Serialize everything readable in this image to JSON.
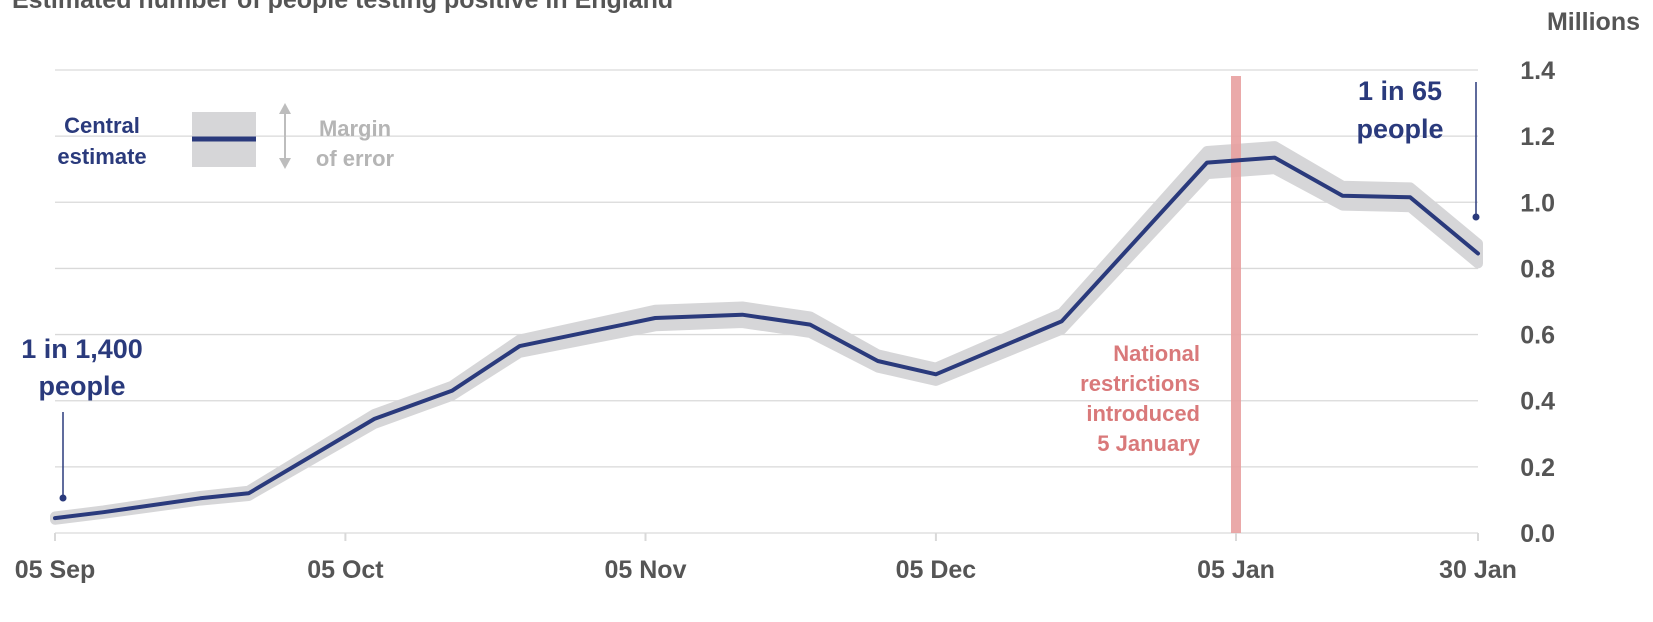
{
  "chart_data": {
    "type": "line",
    "title": "Estimated number of people testing positive in England",
    "units_label": "Millions",
    "ylim": [
      0,
      1.4
    ],
    "y_ticks": [
      "0.0",
      "0.2",
      "0.4",
      "0.6",
      "0.8",
      "1.0",
      "1.2",
      "1.4"
    ],
    "y_tick_values": [
      0,
      0.2,
      0.4,
      0.6,
      0.8,
      1.0,
      1.2,
      1.4
    ],
    "x_range": [
      "2020-09-05",
      "2021-01-30"
    ],
    "x_ticks": [
      {
        "date": "2020-09-05",
        "label": "05 Sep"
      },
      {
        "date": "2020-10-05",
        "label": "05 Oct"
      },
      {
        "date": "2020-11-05",
        "label": "05 Nov"
      },
      {
        "date": "2020-12-05",
        "label": "05 Dec"
      },
      {
        "date": "2021-01-05",
        "label": "05 Jan"
      },
      {
        "date": "2021-01-30",
        "label": "30 Jan"
      }
    ],
    "grid": true,
    "series": [
      {
        "name": "Central estimate",
        "color": "#2a3a7c",
        "band_color": "#d6d6d8",
        "band_label": "Margin of error",
        "points": [
          {
            "x": "2020-09-05",
            "y": 0.045,
            "lo": 0.04,
            "hi": 0.05
          },
          {
            "x": "2020-09-10",
            "y": 0.063,
            "lo": 0.058,
            "hi": 0.068
          },
          {
            "x": "2020-09-20",
            "y": 0.105,
            "lo": 0.098,
            "hi": 0.112
          },
          {
            "x": "2020-09-25",
            "y": 0.12,
            "lo": 0.112,
            "hi": 0.128
          },
          {
            "x": "2020-10-08",
            "y": 0.345,
            "lo": 0.33,
            "hi": 0.36
          },
          {
            "x": "2020-10-16",
            "y": 0.43,
            "lo": 0.415,
            "hi": 0.445
          },
          {
            "x": "2020-10-23",
            "y": 0.565,
            "lo": 0.545,
            "hi": 0.585
          },
          {
            "x": "2020-11-06",
            "y": 0.65,
            "lo": 0.625,
            "hi": 0.675
          },
          {
            "x": "2020-11-15",
            "y": 0.66,
            "lo": 0.635,
            "hi": 0.685
          },
          {
            "x": "2020-11-22",
            "y": 0.63,
            "lo": 0.605,
            "hi": 0.655
          },
          {
            "x": "2020-11-29",
            "y": 0.52,
            "lo": 0.5,
            "hi": 0.54
          },
          {
            "x": "2020-12-05",
            "y": 0.48,
            "lo": 0.46,
            "hi": 0.5
          },
          {
            "x": "2020-12-18",
            "y": 0.64,
            "lo": 0.615,
            "hi": 0.665
          },
          {
            "x": "2021-01-02",
            "y": 1.12,
            "lo": 1.085,
            "hi": 1.155
          },
          {
            "x": "2021-01-09",
            "y": 1.135,
            "lo": 1.1,
            "hi": 1.17
          },
          {
            "x": "2021-01-16",
            "y": 1.02,
            "lo": 0.99,
            "hi": 1.05
          },
          {
            "x": "2021-01-23",
            "y": 1.015,
            "lo": 0.985,
            "hi": 1.045
          },
          {
            "x": "2021-01-30",
            "y": 0.845,
            "lo": 0.815,
            "hi": 0.875
          }
        ]
      }
    ],
    "legend": {
      "placement": "top-left",
      "central_label": [
        "Central",
        "estimate"
      ],
      "margin_label": [
        "Margin",
        "of error"
      ]
    },
    "annotations": {
      "start": {
        "lines": [
          "1 in 1,400",
          "people"
        ],
        "x": "2020-09-05",
        "y": 0.045
      },
      "end": {
        "lines": [
          "1 in 65",
          "people"
        ],
        "x": "2021-01-30",
        "y": 0.845
      },
      "restriction": {
        "date": "2021-01-05",
        "color": "#e8a0a0",
        "text_color": "#d9797a",
        "lines": [
          "National",
          "restrictions",
          "introduced",
          "5 January"
        ]
      }
    },
    "colors": {
      "axis_text": "#555555",
      "title_text": "#555555",
      "grid": "#d9d9d9",
      "annotation": "#2a3a7c",
      "legend_margin_text": "#b5b5b5"
    }
  }
}
